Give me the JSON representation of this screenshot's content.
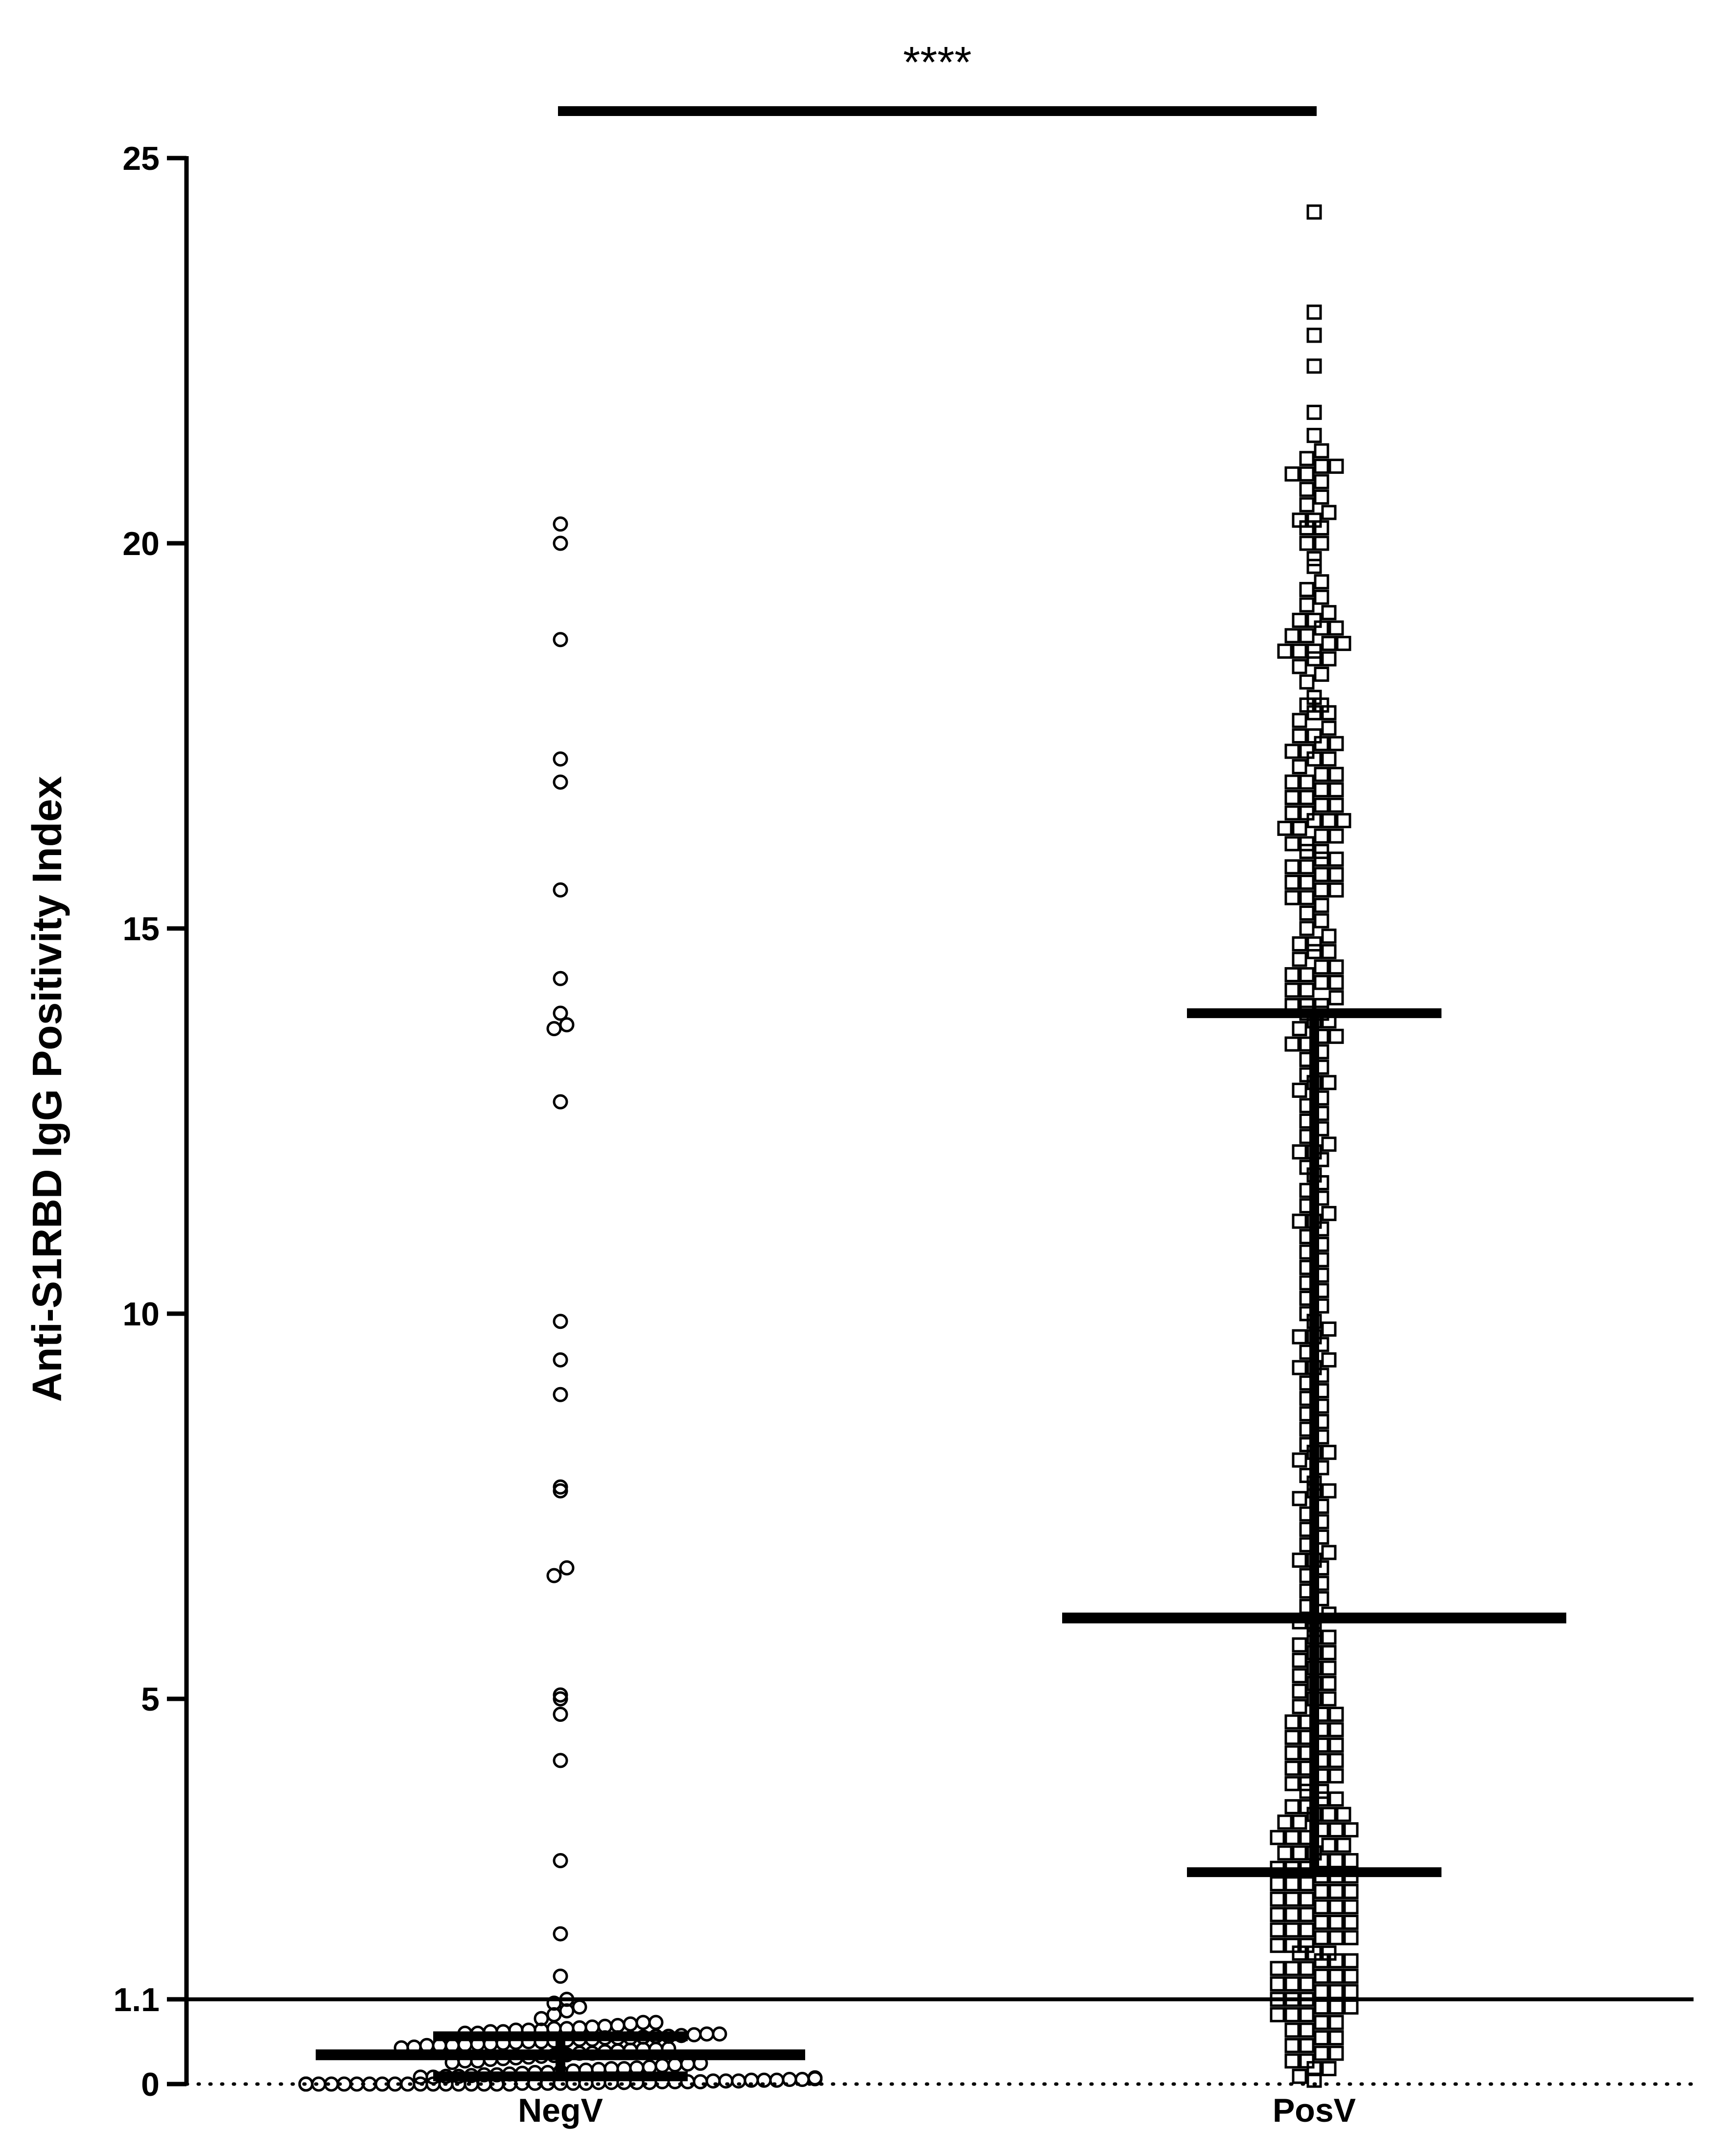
{
  "chart_data": {
    "type": "scatter",
    "title": "",
    "xlabel": "",
    "ylabel": "Anti-S1RBD IgG Positivity Index",
    "ylim": [
      0,
      25
    ],
    "y_ticks": [
      {
        "value": 0,
        "label": "0"
      },
      {
        "value": 1.1,
        "label": "1.1"
      },
      {
        "value": 5,
        "label": "5"
      },
      {
        "value": 10,
        "label": "10"
      },
      {
        "value": 15,
        "label": "15"
      },
      {
        "value": 20,
        "label": "20"
      },
      {
        "value": 25,
        "label": "25"
      }
    ],
    "categories": [
      "NegV",
      "PosV"
    ],
    "cutoff": {
      "value": 1.1,
      "style": "solid"
    },
    "baseline": {
      "value": 0,
      "style": "dotted"
    },
    "significance": "****",
    "series": [
      {
        "category": "NegV",
        "marker": "open-circle",
        "median": 0.38,
        "q1": 0.1,
        "q3": 0.62,
        "values": [
          20.25,
          20.0,
          18.75,
          17.2,
          16.9,
          15.5,
          14.35,
          13.9,
          13.75,
          13.7,
          12.75,
          9.9,
          9.4,
          8.95,
          7.75,
          7.7,
          6.7,
          6.6,
          5.05,
          5.0,
          4.8,
          4.2,
          2.9,
          1.95,
          1.4,
          1.1,
          1.05,
          1.0,
          0.95,
          0.9,
          0.85,
          0.8,
          0.8,
          0.78,
          0.76,
          0.75,
          0.74,
          0.73,
          0.72,
          0.72,
          0.7,
          0.7,
          0.7,
          0.68,
          0.68,
          0.66,
          0.66,
          0.65,
          0.65,
          0.64,
          0.63,
          0.62,
          0.62,
          0.61,
          0.6,
          0.6,
          0.6,
          0.58,
          0.58,
          0.57,
          0.56,
          0.55,
          0.55,
          0.54,
          0.53,
          0.52,
          0.52,
          0.51,
          0.5,
          0.5,
          0.5,
          0.48,
          0.47,
          0.46,
          0.45,
          0.45,
          0.44,
          0.43,
          0.42,
          0.4,
          0.4,
          0.38,
          0.37,
          0.36,
          0.35,
          0.34,
          0.33,
          0.32,
          0.3,
          0.3,
          0.28,
          0.27,
          0.26,
          0.25,
          0.24,
          0.22,
          0.21,
          0.2,
          0.2,
          0.19,
          0.18,
          0.17,
          0.16,
          0.15,
          0.15,
          0.14,
          0.13,
          0.12,
          0.12,
          0.11,
          0.1,
          0.1,
          0.09,
          0.09,
          0.08,
          0.08,
          0.07,
          0.07,
          0.06,
          0.06,
          0.05,
          0.05,
          0.05,
          0.04,
          0.04,
          0.04,
          0.03,
          0.03,
          0.03,
          0.03,
          0.02,
          0.02,
          0.02,
          0.02,
          0.02,
          0.01,
          0.01,
          0.01,
          0.01,
          0.01,
          0.01,
          0.0,
          0.0,
          0.0,
          0.0,
          0.0,
          0.0,
          0.0,
          0.0,
          0.0,
          0.0,
          0.0,
          0.0,
          0.0,
          0.0,
          0.0,
          0.0,
          0.0,
          0.0,
          0.0,
          0.0
        ]
      },
      {
        "category": "PosV",
        "marker": "open-square",
        "median": 6.05,
        "q1": 2.75,
        "q3": 13.9,
        "values": [
          24.3,
          23.0,
          22.7,
          22.3,
          21.7,
          21.4,
          21.2,
          21.1,
          21.0,
          21.0,
          20.9,
          20.9,
          20.8,
          20.7,
          20.6,
          20.5,
          20.4,
          20.3,
          20.3,
          20.2,
          20.2,
          20.0,
          20.0,
          19.8,
          19.7,
          19.5,
          19.4,
          19.3,
          19.2,
          19.1,
          19.0,
          19.0,
          18.9,
          18.9,
          18.8,
          18.8,
          18.7,
          18.7,
          18.6,
          18.6,
          18.6,
          18.5,
          18.5,
          18.4,
          18.3,
          18.2,
          18.0,
          17.9,
          17.9,
          17.8,
          17.8,
          17.7,
          17.6,
          17.5,
          17.5,
          17.4,
          17.4,
          17.3,
          17.3,
          17.2,
          17.2,
          17.1,
          17.0,
          17.0,
          16.9,
          16.9,
          16.8,
          16.8,
          16.7,
          16.7,
          16.6,
          16.6,
          16.5,
          16.5,
          16.4,
          16.4,
          16.4,
          16.3,
          16.3,
          16.2,
          16.2,
          16.1,
          16.1,
          16.0,
          16.0,
          15.9,
          15.9,
          15.8,
          15.8,
          15.7,
          15.7,
          15.6,
          15.6,
          15.5,
          15.5,
          15.4,
          15.4,
          15.3,
          15.2,
          15.1,
          15.0,
          14.9,
          14.8,
          14.8,
          14.7,
          14.7,
          14.6,
          14.5,
          14.5,
          14.4,
          14.4,
          14.3,
          14.3,
          14.2,
          14.2,
          14.1,
          14.0,
          14.0,
          14.0,
          13.9,
          13.9,
          13.8,
          13.8,
          13.7,
          13.6,
          13.6,
          13.5,
          13.5,
          13.4,
          13.3,
          13.2,
          13.1,
          13.0,
          13.0,
          12.9,
          12.8,
          12.7,
          12.6,
          12.5,
          12.4,
          12.3,
          12.2,
          12.1,
          12.1,
          12.0,
          11.9,
          11.8,
          11.7,
          11.6,
          11.5,
          11.4,
          11.3,
          11.2,
          11.2,
          11.1,
          11.0,
          10.9,
          10.8,
          10.7,
          10.6,
          10.5,
          10.4,
          10.3,
          10.2,
          10.1,
          10.0,
          9.9,
          9.8,
          9.7,
          9.7,
          9.6,
          9.5,
          9.4,
          9.3,
          9.3,
          9.2,
          9.1,
          9.0,
          8.9,
          8.8,
          8.7,
          8.6,
          8.5,
          8.4,
          8.3,
          8.2,
          8.2,
          8.1,
          8.0,
          7.9,
          7.8,
          7.7,
          7.7,
          7.6,
          7.5,
          7.4,
          7.3,
          7.2,
          7.1,
          7.0,
          6.9,
          6.8,
          6.8,
          6.7,
          6.6,
          6.5,
          6.4,
          6.3,
          6.2,
          6.1,
          6.0,
          6.0,
          5.9,
          5.8,
          5.8,
          5.7,
          5.6,
          5.6,
          5.5,
          5.4,
          5.4,
          5.3,
          5.2,
          5.2,
          5.1,
          5.0,
          5.0,
          4.9,
          4.8,
          4.8,
          4.7,
          4.7,
          4.6,
          4.6,
          4.5,
          4.5,
          4.4,
          4.4,
          4.3,
          4.3,
          4.2,
          4.2,
          4.1,
          4.1,
          4.0,
          4.0,
          3.9,
          3.9,
          3.8,
          3.8,
          3.7,
          3.7,
          3.6,
          3.6,
          3.5,
          3.5,
          3.5,
          3.4,
          3.4,
          3.3,
          3.3,
          3.3,
          3.2,
          3.2,
          3.2,
          3.1,
          3.1,
          3.0,
          3.0,
          3.0,
          2.9,
          2.9,
          2.9,
          2.8,
          2.8,
          2.8,
          2.7,
          2.7,
          2.7,
          2.6,
          2.6,
          2.6,
          2.5,
          2.5,
          2.5,
          2.4,
          2.4,
          2.4,
          2.3,
          2.3,
          2.3,
          2.2,
          2.2,
          2.2,
          2.1,
          2.1,
          2.1,
          2.0,
          2.0,
          2.0,
          1.9,
          1.9,
          1.9,
          1.8,
          1.8,
          1.8,
          1.7,
          1.7,
          1.7,
          1.6,
          1.6,
          1.6,
          1.5,
          1.5,
          1.5,
          1.4,
          1.4,
          1.4,
          1.3,
          1.3,
          1.3,
          1.2,
          1.2,
          1.2,
          1.1,
          1.1,
          1.1,
          1.0,
          1.0,
          1.0,
          0.9,
          0.9,
          0.9,
          0.8,
          0.8,
          0.7,
          0.7,
          0.6,
          0.6,
          0.5,
          0.5,
          0.4,
          0.4,
          0.3,
          0.3,
          0.2,
          0.2,
          0.1,
          0.05
        ]
      }
    ]
  }
}
